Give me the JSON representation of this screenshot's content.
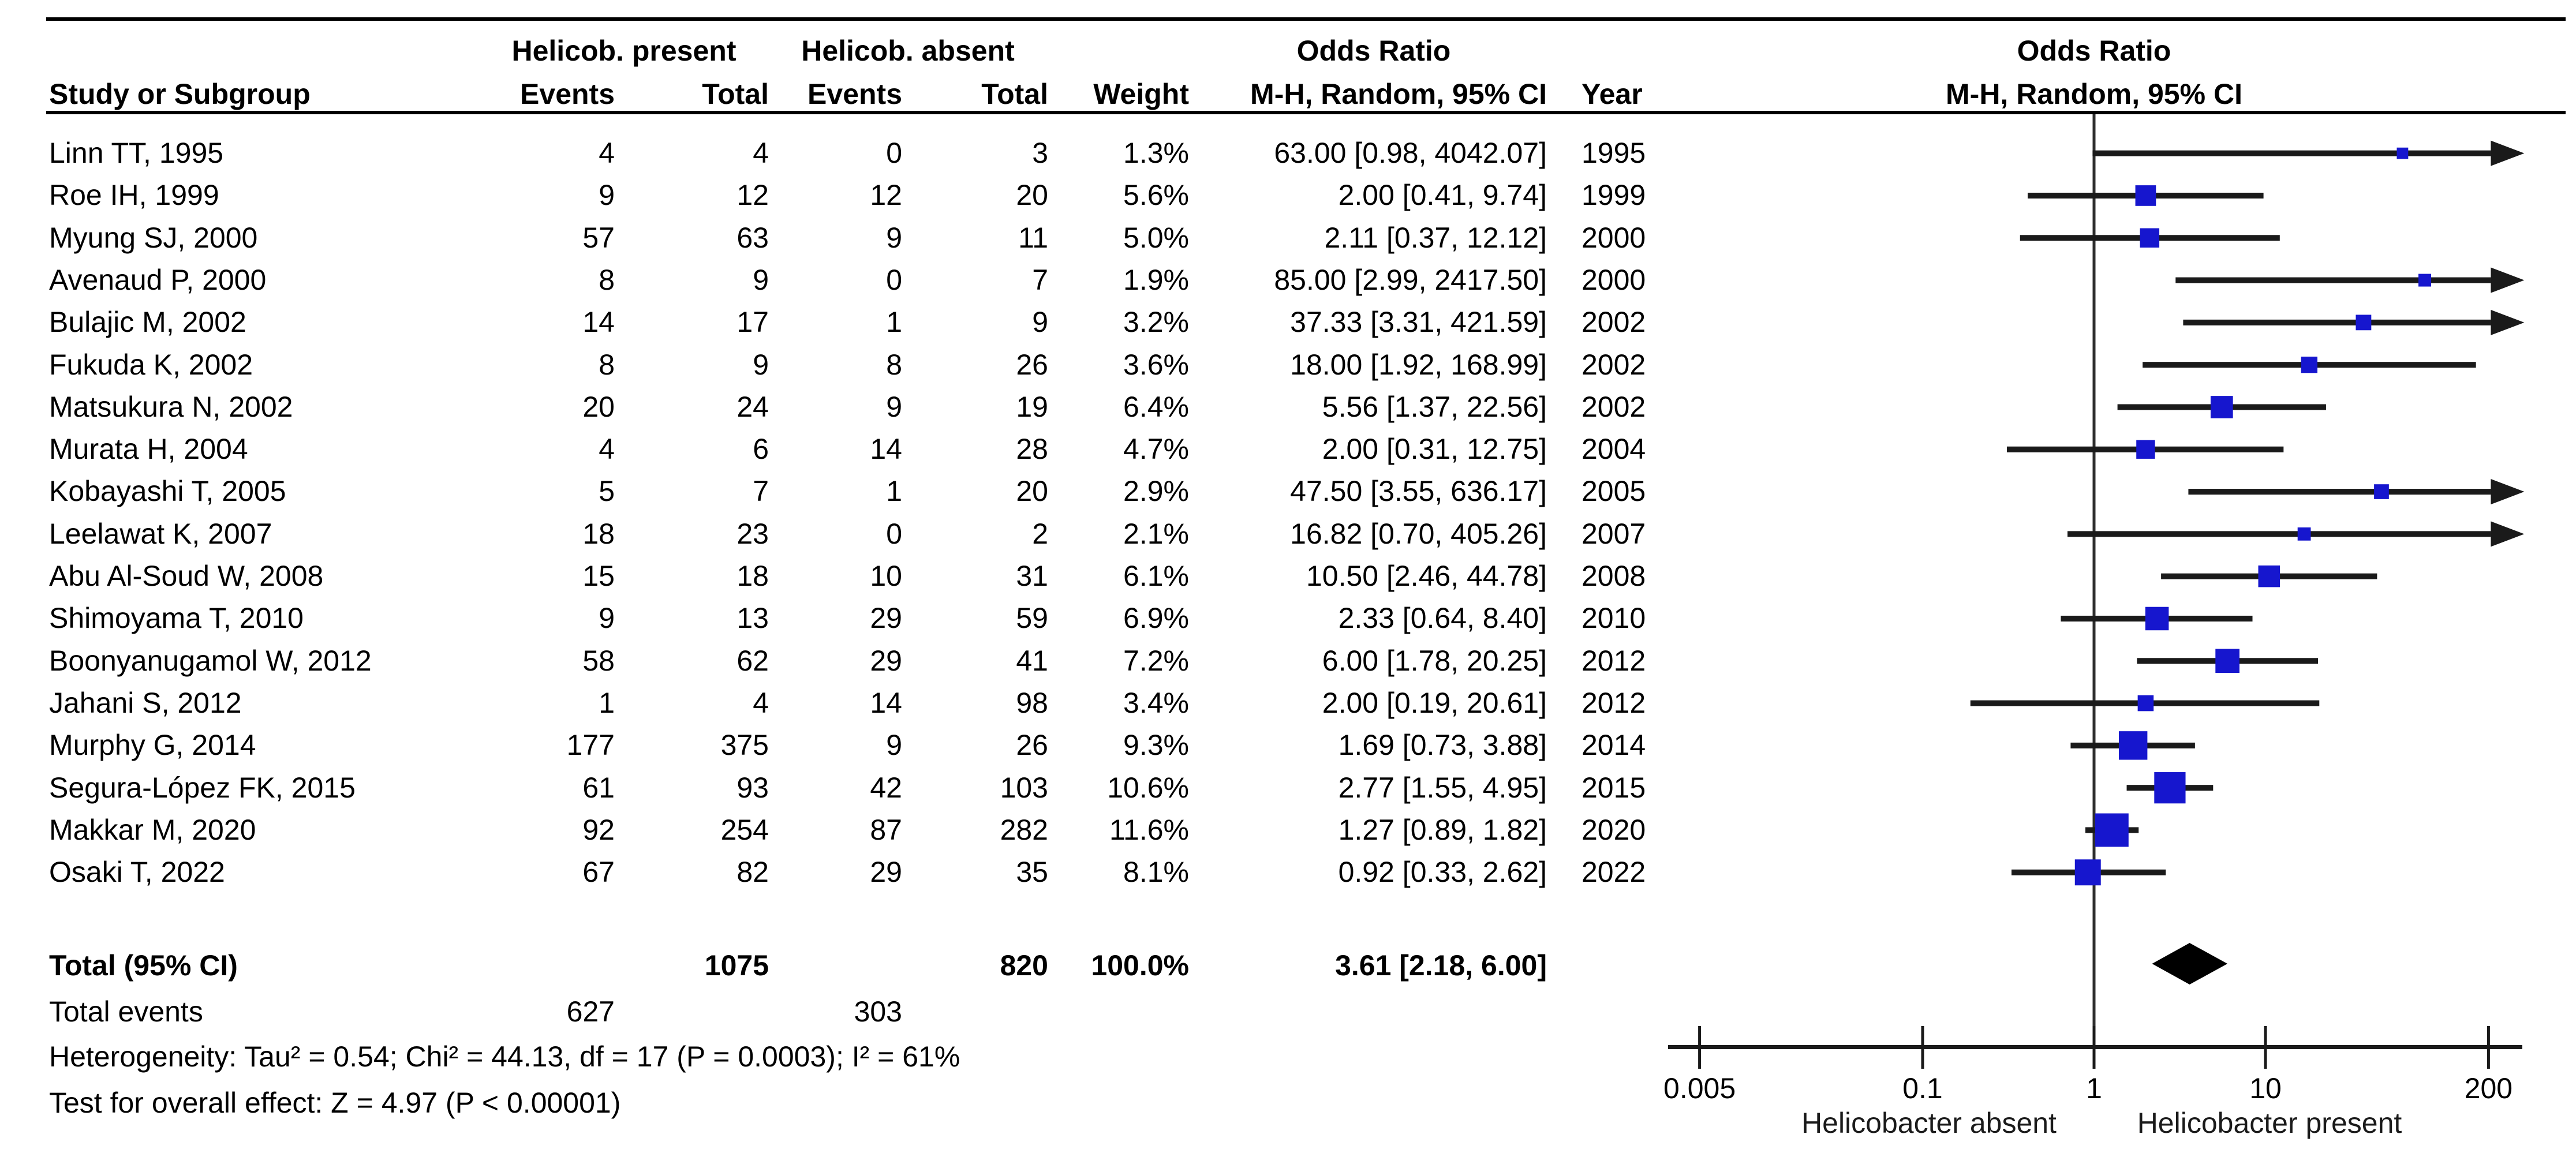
{
  "header": {
    "top_group_present": "Helicob. present",
    "top_group_absent": "Helicob. absent",
    "odds_ratio_title": "Odds Ratio",
    "odds_ratio_subtitle": "M-H, Random, 95% CI",
    "plot_title": "Odds Ratio",
    "plot_subtitle": "M-H, Random, 95% CI",
    "col_study": "Study or Subgroup",
    "col_events": "Events",
    "col_total": "Total",
    "col_weight": "Weight",
    "col_year": "Year"
  },
  "totals": {
    "label": "Total (95% CI)",
    "total_present": "1075",
    "total_absent": "820",
    "weight": "100.0%",
    "or_ci": "3.61 [2.18, 6.00]",
    "events_label": "Total events",
    "events_present": "627",
    "events_absent": "303",
    "heterogeneity": "Heterogeneity: Tau² = 0.54; Chi² = 44.13, df = 17 (P = 0.0003); I² = 61%",
    "overall_effect": "Test for overall effect: Z = 4.97 (P < 0.00001)"
  },
  "axis": {
    "label_left": "Helicobacter absent",
    "label_right": "Helicobacter present"
  },
  "colors": {
    "marker_blue": "#1616CE",
    "line_black": "#1a1a1a",
    "axis_gray": "#2e2e2e",
    "diamond_black": "#000000"
  },
  "chart_data": {
    "type": "scatter",
    "subtype": "forest-plot",
    "title": "Odds Ratio M-H, Random, 95% CI",
    "xscale": "log",
    "xlim": [
      0.005,
      200
    ],
    "x_ticks": [
      0.005,
      0.1,
      1,
      10,
      200
    ],
    "xlabel_left": "Helicobacter absent",
    "xlabel_right": "Helicobacter present",
    "studies": [
      {
        "study": "Linn TT, 1995",
        "e1": 4,
        "t1": 4,
        "e2": 0,
        "t2": 3,
        "weight": 1.3,
        "or": 63.0,
        "lo": 0.98,
        "hi": 4042.07,
        "year": "1995"
      },
      {
        "study": "Roe IH, 1999",
        "e1": 9,
        "t1": 12,
        "e2": 12,
        "t2": 20,
        "weight": 5.6,
        "or": 2.0,
        "lo": 0.41,
        "hi": 9.74,
        "year": "1999"
      },
      {
        "study": "Myung SJ, 2000",
        "e1": 57,
        "t1": 63,
        "e2": 9,
        "t2": 11,
        "weight": 5.0,
        "or": 2.11,
        "lo": 0.37,
        "hi": 12.12,
        "year": "2000"
      },
      {
        "study": "Avenaud P, 2000",
        "e1": 8,
        "t1": 9,
        "e2": 0,
        "t2": 7,
        "weight": 1.9,
        "or": 85.0,
        "lo": 2.99,
        "hi": 2417.5,
        "year": "2000"
      },
      {
        "study": "Bulajic M, 2002",
        "e1": 14,
        "t1": 17,
        "e2": 1,
        "t2": 9,
        "weight": 3.2,
        "or": 37.33,
        "lo": 3.31,
        "hi": 421.59,
        "year": "2002"
      },
      {
        "study": "Fukuda K, 2002",
        "e1": 8,
        "t1": 9,
        "e2": 8,
        "t2": 26,
        "weight": 3.6,
        "or": 18.0,
        "lo": 1.92,
        "hi": 168.99,
        "year": "2002"
      },
      {
        "study": "Matsukura N, 2002",
        "e1": 20,
        "t1": 24,
        "e2": 9,
        "t2": 19,
        "weight": 6.4,
        "or": 5.56,
        "lo": 1.37,
        "hi": 22.56,
        "year": "2002"
      },
      {
        "study": "Murata H, 2004",
        "e1": 4,
        "t1": 6,
        "e2": 14,
        "t2": 28,
        "weight": 4.7,
        "or": 2.0,
        "lo": 0.31,
        "hi": 12.75,
        "year": "2004"
      },
      {
        "study": "Kobayashi T, 2005",
        "e1": 5,
        "t1": 7,
        "e2": 1,
        "t2": 20,
        "weight": 2.9,
        "or": 47.5,
        "lo": 3.55,
        "hi": 636.17,
        "year": "2005"
      },
      {
        "study": "Leelawat K, 2007",
        "e1": 18,
        "t1": 23,
        "e2": 0,
        "t2": 2,
        "weight": 2.1,
        "or": 16.82,
        "lo": 0.7,
        "hi": 405.26,
        "year": "2007"
      },
      {
        "study": "Abu Al-Soud W, 2008",
        "e1": 15,
        "t1": 18,
        "e2": 10,
        "t2": 31,
        "weight": 6.1,
        "or": 10.5,
        "lo": 2.46,
        "hi": 44.78,
        "year": "2008"
      },
      {
        "study": "Shimoyama T, 2010",
        "e1": 9,
        "t1": 13,
        "e2": 29,
        "t2": 59,
        "weight": 6.9,
        "or": 2.33,
        "lo": 0.64,
        "hi": 8.4,
        "year": "2010"
      },
      {
        "study": "Boonyanugamol W, 2012",
        "e1": 58,
        "t1": 62,
        "e2": 29,
        "t2": 41,
        "weight": 7.2,
        "or": 6.0,
        "lo": 1.78,
        "hi": 20.25,
        "year": "2012"
      },
      {
        "study": "Jahani S, 2012",
        "e1": 1,
        "t1": 4,
        "e2": 14,
        "t2": 98,
        "weight": 3.4,
        "or": 2.0,
        "lo": 0.19,
        "hi": 20.61,
        "year": "2012"
      },
      {
        "study": "Murphy G, 2014",
        "e1": 177,
        "t1": 375,
        "e2": 9,
        "t2": 26,
        "weight": 9.3,
        "or": 1.69,
        "lo": 0.73,
        "hi": 3.88,
        "year": "2014"
      },
      {
        "study": "Segura-López FK, 2015",
        "e1": 61,
        "t1": 93,
        "e2": 42,
        "t2": 103,
        "weight": 10.6,
        "or": 2.77,
        "lo": 1.55,
        "hi": 4.95,
        "year": "2015"
      },
      {
        "study": "Makkar M, 2020",
        "e1": 92,
        "t1": 254,
        "e2": 87,
        "t2": 282,
        "weight": 11.6,
        "or": 1.27,
        "lo": 0.89,
        "hi": 1.82,
        "year": "2020"
      },
      {
        "study": "Osaki T, 2022",
        "e1": 67,
        "t1": 82,
        "e2": 29,
        "t2": 35,
        "weight": 8.1,
        "or": 0.92,
        "lo": 0.33,
        "hi": 2.62,
        "year": "2022"
      }
    ],
    "total": {
      "or": 3.61,
      "lo": 2.18,
      "hi": 6.0,
      "total_present": 1075,
      "total_absent": 820,
      "events_present": 627,
      "events_absent": 303,
      "weight": "100.0%"
    }
  }
}
